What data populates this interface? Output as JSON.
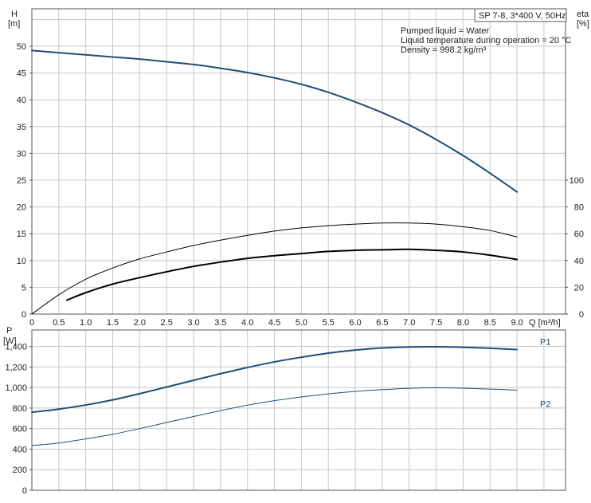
{
  "info_box": {
    "title": "SP 7-8, 3*400 V, 50Hz",
    "lines": [
      "Pumped liquid = Water",
      "Liquid temperature during operation = 20 °C",
      "Density = 998.2 kg/m³"
    ]
  },
  "axes": {
    "top_left_label": [
      "H",
      "[m]"
    ],
    "top_right_label": [
      "eta",
      "[%]"
    ],
    "bottom_left_label": [
      "P",
      "[W]"
    ],
    "x_label": "Q [m³/h]"
  },
  "colors": {
    "blue": "#1f4e79",
    "black": "#000000",
    "grid": "#c8c8c8"
  },
  "chart_data": [
    {
      "type": "line",
      "title": "",
      "x_ticks": [
        "0",
        "0.5",
        "1.0",
        "1.5",
        "2.0",
        "2.5",
        "3.0",
        "3.5",
        "4.0",
        "4.5",
        "5.0",
        "5.5",
        "6.0",
        "6.5",
        "7.0",
        "7.5",
        "8.0",
        "8.5",
        "9.0"
      ],
      "xlim": [
        0,
        9.9
      ],
      "y_left": {
        "label": "H [m]",
        "ticks": [
          "0",
          "5",
          "10",
          "15",
          "20",
          "25",
          "30",
          "35",
          "40",
          "45",
          "50"
        ],
        "ylim": [
          0,
          57
        ]
      },
      "y_right": {
        "label": "eta [%]",
        "ticks": [
          "0",
          "20",
          "40",
          "60",
          "80",
          "100"
        ],
        "ylim": [
          0,
          228
        ]
      },
      "series": [
        {
          "key": "H",
          "axis": "left",
          "color": "#1f4e79",
          "width": 2,
          "points": [
            [
              0,
              49.2
            ],
            [
              0.5,
              48.8
            ],
            [
              1.0,
              48.4
            ],
            [
              1.5,
              48.0
            ],
            [
              2.0,
              47.6
            ],
            [
              2.5,
              47.1
            ],
            [
              3.0,
              46.6
            ],
            [
              3.5,
              45.9
            ],
            [
              4.0,
              45.1
            ],
            [
              4.5,
              44.1
            ],
            [
              5.0,
              42.9
            ],
            [
              5.5,
              41.4
            ],
            [
              6.0,
              39.6
            ],
            [
              6.5,
              37.6
            ],
            [
              7.0,
              35.3
            ],
            [
              7.5,
              32.6
            ],
            [
              8.0,
              29.6
            ],
            [
              8.5,
              26.3
            ],
            [
              9.0,
              22.8
            ]
          ]
        },
        {
          "key": "eta_total",
          "axis": "left",
          "color": "#000000",
          "width": 1,
          "points": [
            [
              0,
              0
            ],
            [
              0.5,
              3.6
            ],
            [
              1.0,
              6.5
            ],
            [
              1.5,
              8.6
            ],
            [
              2.0,
              10.3
            ],
            [
              2.5,
              11.6
            ],
            [
              3.0,
              12.8
            ],
            [
              3.5,
              13.8
            ],
            [
              4.0,
              14.7
            ],
            [
              4.5,
              15.5
            ],
            [
              5.0,
              16.1
            ],
            [
              5.5,
              16.5
            ],
            [
              6.0,
              16.8
            ],
            [
              6.5,
              17.0
            ],
            [
              7.0,
              17.0
            ],
            [
              7.5,
              16.8
            ],
            [
              8.0,
              16.3
            ],
            [
              8.5,
              15.6
            ],
            [
              9.0,
              14.4
            ]
          ]
        },
        {
          "key": "eta_pump",
          "axis": "left",
          "color": "#000000",
          "width": 2,
          "points": [
            [
              0.65,
              2.6
            ],
            [
              1.0,
              4.0
            ],
            [
              1.5,
              5.6
            ],
            [
              2.0,
              6.8
            ],
            [
              2.5,
              7.9
            ],
            [
              3.0,
              8.9
            ],
            [
              3.5,
              9.7
            ],
            [
              4.0,
              10.4
            ],
            [
              4.5,
              10.9
            ],
            [
              5.0,
              11.3
            ],
            [
              5.5,
              11.7
            ],
            [
              6.0,
              11.9
            ],
            [
              6.5,
              12.0
            ],
            [
              7.0,
              12.1
            ],
            [
              7.5,
              11.9
            ],
            [
              8.0,
              11.6
            ],
            [
              8.5,
              11.0
            ],
            [
              9.0,
              10.2
            ]
          ]
        }
      ]
    },
    {
      "type": "line",
      "title": "",
      "xlim": [
        0,
        9.9
      ],
      "y_left": {
        "label": "P [W]",
        "ticks": [
          "0",
          "200",
          "400",
          "600",
          "800",
          "1,000",
          "1,200",
          "1,400"
        ],
        "ylim": [
          0,
          1560
        ]
      },
      "series": [
        {
          "name": "P1",
          "color": "#1f4e79",
          "width": 2,
          "points": [
            [
              0,
              760
            ],
            [
              0.5,
              790
            ],
            [
              1.0,
              830
            ],
            [
              1.5,
              880
            ],
            [
              2.0,
              940
            ],
            [
              2.5,
              1005
            ],
            [
              3.0,
              1070
            ],
            [
              3.5,
              1135
            ],
            [
              4.0,
              1195
            ],
            [
              4.5,
              1250
            ],
            [
              5.0,
              1295
            ],
            [
              5.5,
              1335
            ],
            [
              6.0,
              1365
            ],
            [
              6.5,
              1385
            ],
            [
              7.0,
              1395
            ],
            [
              7.5,
              1397
            ],
            [
              8.0,
              1392
            ],
            [
              8.5,
              1382
            ],
            [
              9.0,
              1370
            ]
          ]
        },
        {
          "name": "P2",
          "color": "#1f4e79",
          "width": 1,
          "points": [
            [
              0,
              435
            ],
            [
              0.5,
              460
            ],
            [
              1.0,
              500
            ],
            [
              1.5,
              545
            ],
            [
              2.0,
              600
            ],
            [
              2.5,
              660
            ],
            [
              3.0,
              718
            ],
            [
              3.5,
              775
            ],
            [
              4.0,
              828
            ],
            [
              4.5,
              872
            ],
            [
              5.0,
              908
            ],
            [
              5.5,
              938
            ],
            [
              6.0,
              962
            ],
            [
              6.5,
              980
            ],
            [
              7.0,
              992
            ],
            [
              7.5,
              997
            ],
            [
              8.0,
              993
            ],
            [
              8.5,
              985
            ],
            [
              9.0,
              975
            ]
          ]
        }
      ]
    }
  ]
}
